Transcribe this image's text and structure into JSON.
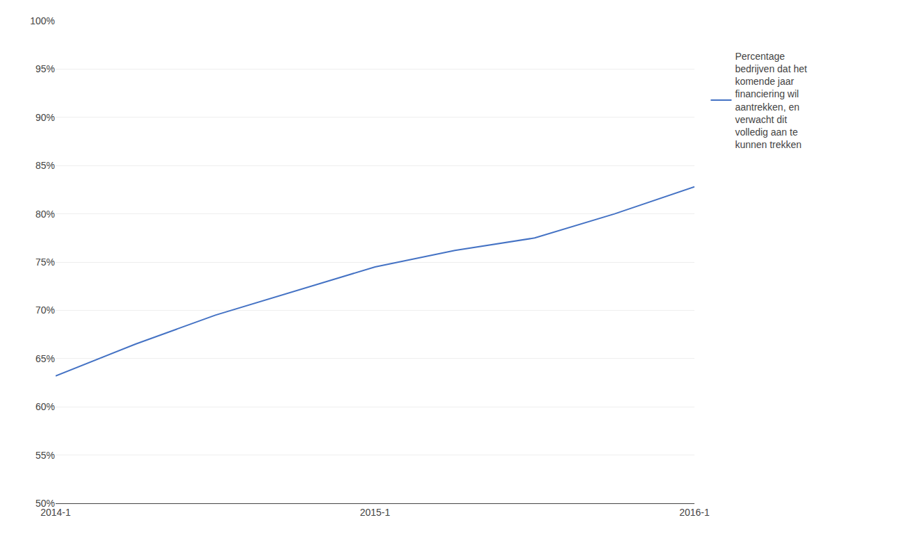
{
  "chart_data": {
    "type": "line",
    "categories": [
      "2014-1",
      null,
      null,
      null,
      "2015-1",
      null,
      null,
      null,
      "2016-1"
    ],
    "series": [
      {
        "name": "Percentage\nbedrijven dat het\nkomende jaar\nfinanciering wil\naantrekken, en\nverwacht dit\nvolledig aan te\nkunnen trekken",
        "color": "#4472C4",
        "values": [
          0.632,
          0.665,
          0.695,
          0.72,
          0.745,
          0.762,
          0.775,
          0.8,
          0.828
        ]
      }
    ],
    "ylim": [
      0.5,
      1.0
    ],
    "yticks": [
      {
        "value": 0.5,
        "label": "50%"
      },
      {
        "value": 0.55,
        "label": "55%"
      },
      {
        "value": 0.6,
        "label": "60%"
      },
      {
        "value": 0.65,
        "label": "65%"
      },
      {
        "value": 0.7,
        "label": "70%"
      },
      {
        "value": 0.75,
        "label": "75%"
      },
      {
        "value": 0.8,
        "label": "80%"
      },
      {
        "value": 0.85,
        "label": "85%"
      },
      {
        "value": 0.9,
        "label": "90%"
      },
      {
        "value": 0.95,
        "label": "95%"
      },
      {
        "value": 1.0,
        "label": "100%"
      }
    ],
    "grid": true,
    "legend": "right"
  }
}
